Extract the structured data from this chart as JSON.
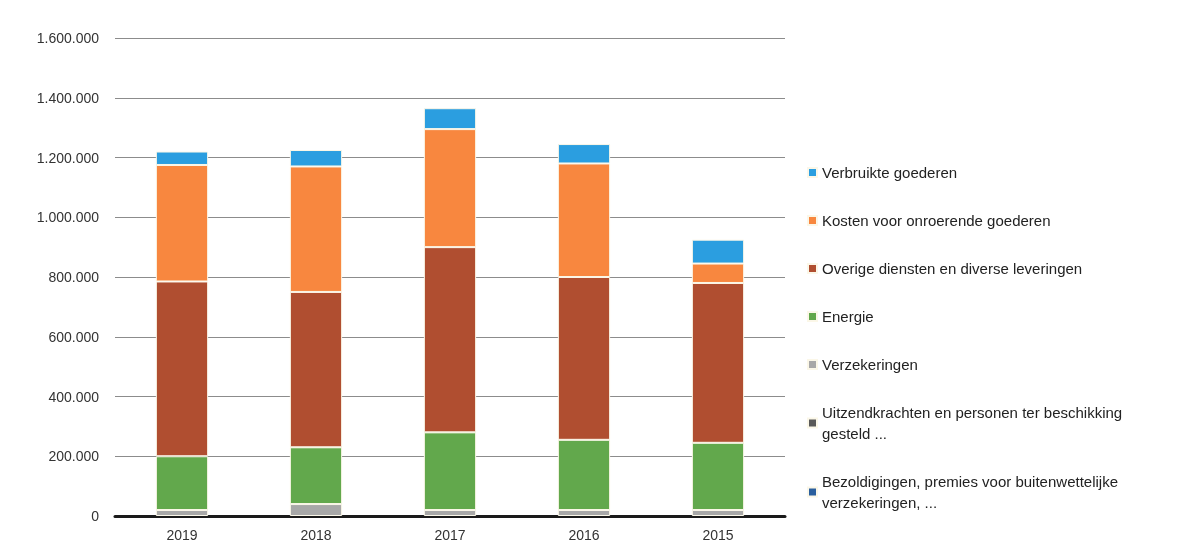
{
  "chart_data": {
    "type": "bar",
    "stacked": true,
    "categories": [
      "2019",
      "2018",
      "2017",
      "2016",
      "2015"
    ],
    "series": [
      {
        "name": "Bezoldigingen, premies voor buitenwettelijke verzekeringen, ...",
        "color": "#2a5f9e",
        "values": [
          null,
          null,
          null,
          null,
          null
        ]
      },
      {
        "name": "Uitzendkrachten en personen ter beschikking gesteld ...",
        "color": "#595959",
        "values": [
          null,
          null,
          null,
          null,
          null
        ]
      },
      {
        "name": "Verzekeringen",
        "color": "#a8a8a8",
        "values": [
          20000,
          40000,
          20000,
          20000,
          20000
        ]
      },
      {
        "name": "Energie",
        "color": "#62a84c",
        "values": [
          180000,
          190000,
          260000,
          235000,
          225000
        ]
      },
      {
        "name": "Overige diensten en diverse leveringen",
        "color": "#b04e30",
        "values": [
          585000,
          520000,
          620000,
          545000,
          535000
        ]
      },
      {
        "name": "Kosten voor onroerende goederen",
        "color": "#f8873f",
        "values": [
          390000,
          420000,
          395000,
          380000,
          65000
        ]
      },
      {
        "name": "Verbruikte goederen",
        "color": "#2b9ee0",
        "values": [
          45000,
          55000,
          70000,
          65000,
          80000
        ]
      }
    ],
    "ylim": [
      0,
      1600000
    ],
    "yticks": [
      {
        "value": 0,
        "label": "0"
      },
      {
        "value": 200000,
        "label": "200.000"
      },
      {
        "value": 400000,
        "label": "400.000"
      },
      {
        "value": 600000,
        "label": "600.000"
      },
      {
        "value": 800000,
        "label": "800.000"
      },
      {
        "value": 1000000,
        "label": "1.000.000"
      },
      {
        "value": 1200000,
        "label": "1.200.000"
      },
      {
        "value": 1400000,
        "label": "1.400.000"
      },
      {
        "value": 1600000,
        "label": "1.600.000"
      }
    ],
    "grid": "y",
    "legend": "right"
  }
}
